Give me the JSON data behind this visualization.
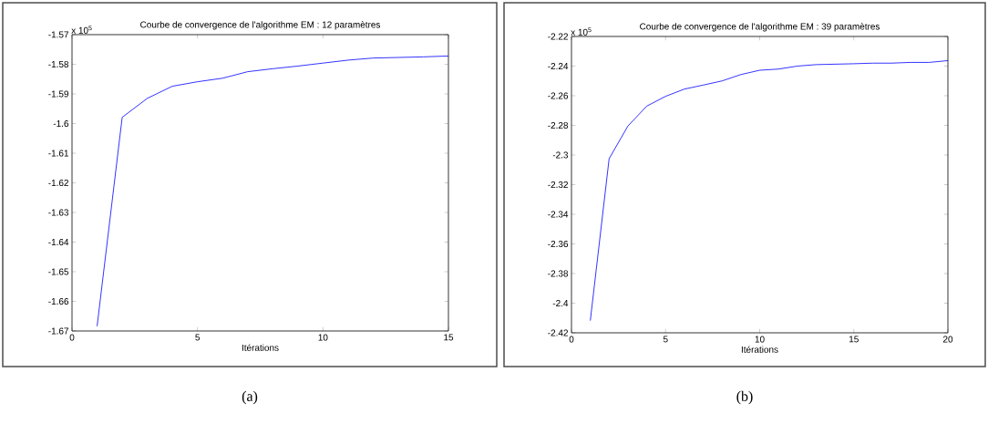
{
  "chart_data": [
    {
      "type": "line",
      "title": "Courbe de convergence de l'algorithme EM : 12 paramètres",
      "xlabel": "Itérations",
      "annotations": [
        "x 10$^{5}$",
        "(a)"
      ],
      "x": [
        1,
        2,
        3,
        4,
        5,
        6,
        7,
        8,
        9,
        10,
        11,
        12,
        13,
        14,
        15
      ],
      "series": [
        {
          "color": "#0000ff",
          "values": [
            -1.6684,
            -1.5979,
            -1.5915,
            -1.5874,
            -1.5859,
            -1.5847,
            -1.5825,
            -1.5815,
            -1.5806,
            -1.5796,
            -1.5786,
            -1.5779,
            -1.5777,
            -1.5775,
            -1.5772
          ]
        }
      ],
      "xlim": [
        0,
        15
      ],
      "xticks": [
        0,
        5,
        10,
        15
      ],
      "ylim": [
        -1.67,
        -1.57
      ],
      "yticks": [
        -1.67,
        -1.66,
        -1.65,
        -1.64,
        -1.63,
        -1.62,
        -1.61,
        -1.6,
        -1.59,
        -1.58,
        -1.57
      ]
    },
    {
      "type": "line",
      "title": "Courbe de convergence de l'algorithme EM : 39 paramètres",
      "xlabel": "Itérations",
      "annotations": [
        "x 10$^{5}$",
        "(b)"
      ],
      "x": [
        1,
        2,
        3,
        4,
        5,
        6,
        7,
        8,
        9,
        10,
        11,
        12,
        13,
        14,
        15,
        16,
        17,
        18,
        19,
        20
      ],
      "series": [
        {
          "color": "#0000ff",
          "values": [
            -2.4118,
            -2.3025,
            -2.2804,
            -2.267,
            -2.2604,
            -2.2555,
            -2.2528,
            -2.25,
            -2.2457,
            -2.2428,
            -2.242,
            -2.24,
            -2.239,
            -2.2387,
            -2.2384,
            -2.238,
            -2.238,
            -2.2375,
            -2.2375,
            -2.2363
          ]
        }
      ],
      "xlim": [
        0,
        20
      ],
      "xticks": [
        0,
        5,
        10,
        15,
        20
      ],
      "ylim": [
        -2.42,
        -2.22
      ],
      "yticks": [
        -2.42,
        -2.4,
        -2.38,
        -2.36,
        -2.34,
        -2.32,
        -2.3,
        -2.28,
        -2.26,
        -2.24,
        -2.22
      ]
    }
  ]
}
